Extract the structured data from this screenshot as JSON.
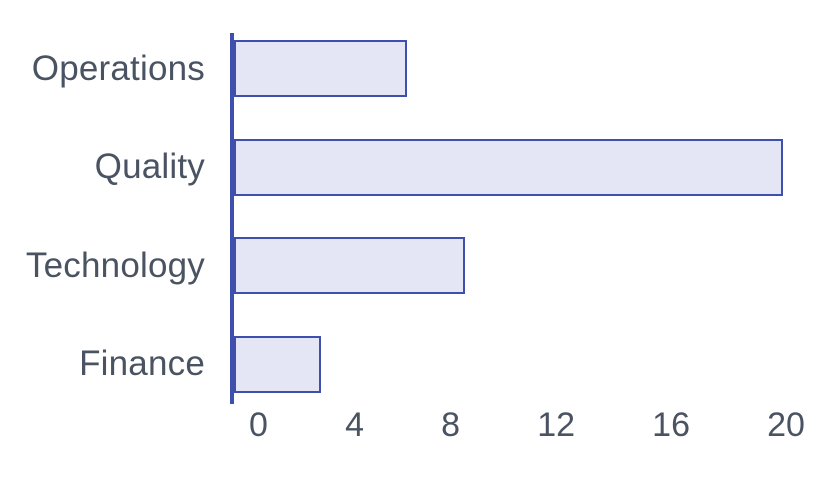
{
  "chart_data": {
    "type": "bar",
    "orientation": "horizontal",
    "title": "",
    "xlabel": "",
    "ylabel": "",
    "categories": [
      "Operations",
      "Quality",
      "Technology",
      "Finance"
    ],
    "values": [
      6,
      19,
      8,
      3
    ],
    "xlim": [
      0,
      20
    ],
    "x_ticks": [
      "0",
      "4",
      "8",
      "12",
      "16",
      "20"
    ],
    "grid": false,
    "legend": null,
    "colors": {
      "bar_fill": "#e5e6f5",
      "bar_border": "#3f4fae",
      "axis_line": "#3f4fae",
      "label_text": "#4a5362",
      "background": "#ffffff"
    }
  }
}
